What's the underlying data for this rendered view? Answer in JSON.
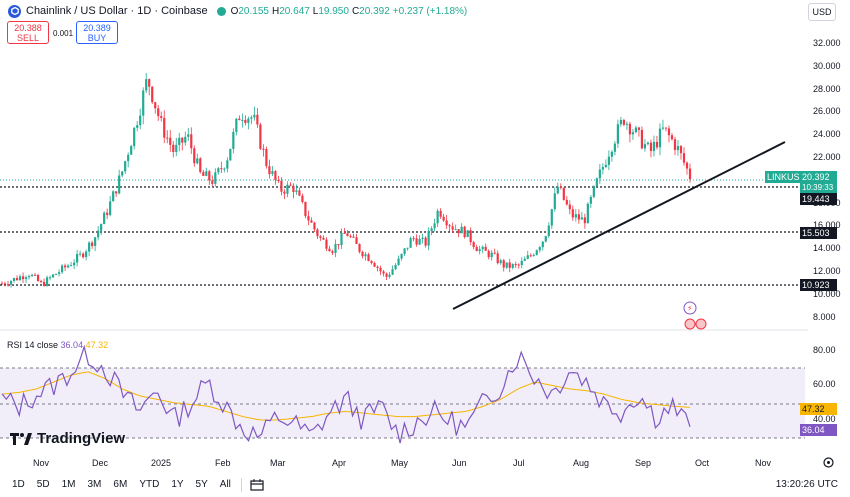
{
  "header": {
    "title": "Chainlink / US Dollar · 1D · Coinbase",
    "ohlc": [
      {
        "label": "O",
        "value": "20.155"
      },
      {
        "label": "H",
        "value": "20.647"
      },
      {
        "label": "L",
        "value": "19.950"
      },
      {
        "label": "C",
        "value": "20.392"
      },
      {
        "label": "",
        "value": "+0.237 (+1.18%)"
      }
    ],
    "currency": "USD"
  },
  "trade": {
    "sell_price": "20.388",
    "sell_label": "SELL",
    "buy_price": "20.389",
    "buy_label": "BUY",
    "spread": "0.001"
  },
  "rsi": {
    "label": "RSI 14 close",
    "value": "36.04",
    "ma_value": "47.32"
  },
  "price_tags": {
    "symbol": "LINKUSD",
    "last": "20.392",
    "countdown": "10:39:33",
    "level1": "19.443",
    "level2": "15.503",
    "level3": "10.923",
    "rsi_ma": "47.32",
    "rsi_val": "36.04"
  },
  "watermark": "TradingView",
  "toolbar": {
    "timeframes": [
      "1D",
      "5D",
      "1M",
      "3M",
      "6M",
      "YTD",
      "1Y",
      "5Y",
      "All"
    ],
    "clock": "13:20:26 UTC"
  },
  "colors": {
    "up": "#22ab94",
    "down": "#f23645",
    "rsi": "#7e57c2",
    "rsi_ma": "#f7b500",
    "buy": "#2962ff"
  },
  "chart_data": {
    "type": "candlestick",
    "x_ticks": [
      "Nov",
      "Dec",
      "2025",
      "Feb",
      "Mar",
      "Apr",
      "May",
      "Jun",
      "Jul",
      "Aug",
      "Sep",
      "Oct",
      "Nov"
    ],
    "y_ticks": [
      "32.000",
      "30.000",
      "28.000",
      "26.000",
      "24.000",
      "22.000",
      "18.000",
      "16.000",
      "14.000",
      "12.000",
      "10.000",
      "8.000"
    ],
    "rsi_ticks": [
      "80.00",
      "60.00",
      "40.00"
    ],
    "close_path": [
      11.0,
      11.4,
      11.9,
      10.9,
      11.8,
      12.6,
      13.5,
      15.0,
      17.5,
      20.5,
      24.5,
      29.0,
      25.0,
      22.5,
      24.0,
      20.5,
      20.0,
      22.0,
      26.0,
      25.5,
      21.5,
      19.2,
      19.5,
      17.0,
      15.0,
      14.0,
      15.5,
      14.0,
      13.0,
      11.5,
      13.0,
      15.0,
      14.5,
      17.5,
      16.0,
      15.5,
      14.0,
      13.5,
      12.5,
      12.5,
      13.5,
      15.0,
      19.5,
      17.0,
      16.5,
      20.0,
      23.0,
      25.5,
      24.0,
      22.5,
      24.5,
      23.0,
      20.4
    ],
    "rsi_path": [
      52,
      48,
      55,
      60,
      68,
      78,
      70,
      55,
      45,
      58,
      40,
      50,
      62,
      48,
      35,
      30,
      42,
      38,
      30,
      44,
      52,
      40,
      48,
      32,
      38,
      45,
      40,
      35,
      50,
      60,
      78,
      65,
      55,
      70,
      62,
      50,
      45,
      55,
      42,
      48,
      36
    ],
    "rsi_ma_path": [
      55,
      56,
      58,
      62,
      66,
      68,
      64,
      58,
      54,
      52,
      50,
      49,
      48,
      45,
      42,
      40,
      40,
      41,
      42,
      44,
      45,
      44,
      43,
      42,
      42,
      43,
      44,
      45,
      48,
      52,
      58,
      62,
      60,
      58,
      57,
      55,
      52,
      50,
      49,
      48,
      47.3
    ],
    "horizontal_levels": [
      19.443,
      15.503,
      10.923
    ],
    "trendline": [
      [
        8.9,
        "Jun start"
      ],
      [
        23.3,
        "Oct mid"
      ]
    ]
  }
}
